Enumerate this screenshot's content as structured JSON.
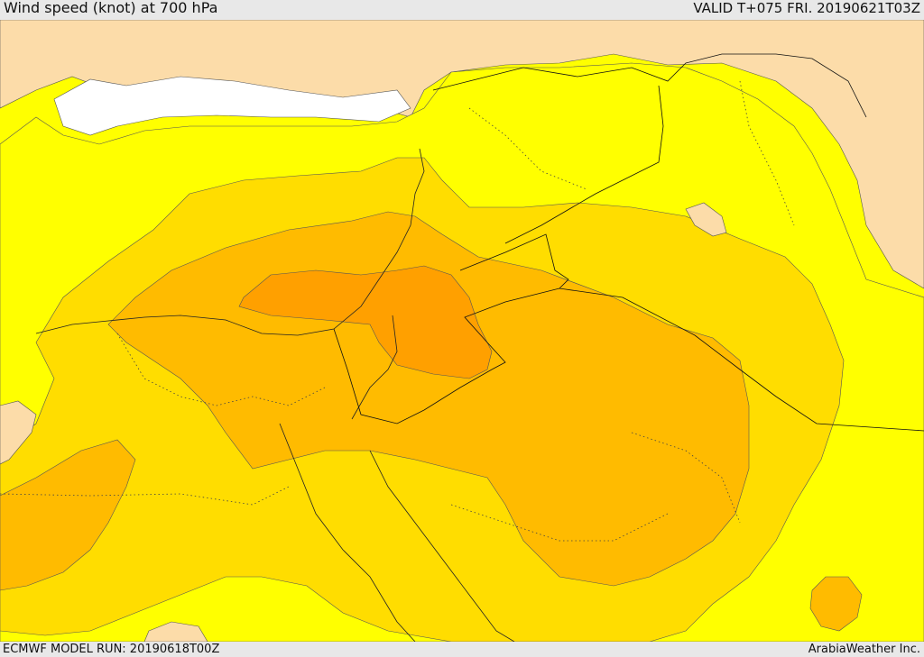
{
  "header": {
    "title": "Wind speed (knot) at 700 hPa",
    "valid": "VALID T+075 FRI. 20190621T03Z"
  },
  "footer": {
    "model_run": "ECMWF MODEL RUN: 20190618T00Z",
    "credit": "ArabiaWeather Inc."
  },
  "map": {
    "colors": {
      "land_low": "#fcdca9",
      "white_band": "#ffffff",
      "level1": "#ffff00",
      "level2": "#ffdd00",
      "level3": "#ffbb00",
      "level4": "#ffa000"
    }
  }
}
